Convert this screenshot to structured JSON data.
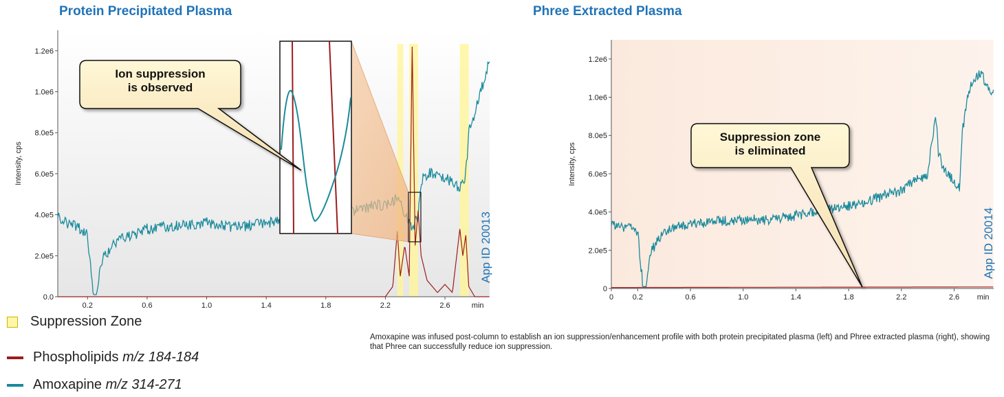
{
  "legend": {
    "suppression_zone": "Suppression Zone",
    "phospholipids_prefix": "Phospholipids ",
    "phospholipids_mz": "m/z 184-184",
    "amoxapine_prefix": "Amoxapine ",
    "amoxapine_mz": "m/z 314-271"
  },
  "caption": "Amoxapine was infused post-column to establish an ion suppression/enhancement profile with both protein precipitated plasma (left) and Phree extracted plasma (right), showing that Phree can successfully reduce ion suppression.",
  "colors": {
    "amoxapine": "#1a8a9c",
    "phospholipids": "#9b1c1c",
    "suppression_zone": "#fff59a",
    "title": "#1f73b7"
  },
  "chart_data": [
    {
      "type": "line",
      "title": "Protein Precipitated Plasma",
      "ylabel": "Intensity, cps",
      "xlabel": "min",
      "xlim": [
        0,
        2.9
      ],
      "ylim": [
        0,
        1300000
      ],
      "x_ticks": [
        "0.2",
        "0.6",
        "1.0",
        "1.4",
        "1.8",
        "2.2",
        "2.6",
        "min"
      ],
      "y_ticks": [
        "0.0",
        "2.0e5",
        "4.0e5",
        "6.0e5",
        "8.0e5",
        "1.0e6",
        "1.2e6"
      ],
      "annotation": "Ion suppression\nis observed",
      "watermark": "App ID 20013",
      "suppression_zones": [
        [
          2.28,
          2.32
        ],
        [
          2.36,
          2.42
        ],
        [
          2.7,
          2.76
        ]
      ],
      "series": [
        {
          "name": "Amoxapine m/z 314-271",
          "x": [
            0.0,
            0.05,
            0.1,
            0.15,
            0.2,
            0.22,
            0.24,
            0.26,
            0.28,
            0.3,
            0.35,
            0.4,
            0.5,
            0.6,
            0.8,
            1.0,
            1.2,
            1.4,
            1.6,
            1.8,
            2.0,
            2.1,
            2.2,
            2.28,
            2.32,
            2.35,
            2.38,
            2.42,
            2.45,
            2.5,
            2.6,
            2.65,
            2.7,
            2.74,
            2.76,
            2.8,
            2.84,
            2.88,
            2.9
          ],
          "y": [
            400000,
            360000,
            350000,
            330000,
            300000,
            150000,
            10000,
            10000,
            100000,
            180000,
            230000,
            270000,
            300000,
            330000,
            350000,
            360000,
            340000,
            360000,
            380000,
            400000,
            420000,
            440000,
            450000,
            480000,
            420000,
            380000,
            320000,
            400000,
            580000,
            600000,
            580000,
            560000,
            520000,
            600000,
            800000,
            900000,
            1000000,
            1100000,
            1180000
          ]
        },
        {
          "name": "Phospholipids m/z 184-184",
          "x": [
            0.0,
            1.8,
            2.2,
            2.25,
            2.28,
            2.3,
            2.33,
            2.36,
            2.38,
            2.4,
            2.42,
            2.44,
            2.48,
            2.55,
            2.6,
            2.65,
            2.7,
            2.72,
            2.74,
            2.76,
            2.8,
            2.9
          ],
          "y": [
            0,
            0,
            0,
            50000,
            320000,
            100000,
            250000,
            100000,
            1220000,
            250000,
            420000,
            200000,
            80000,
            20000,
            60000,
            20000,
            330000,
            200000,
            300000,
            50000,
            0,
            0
          ]
        }
      ]
    },
    {
      "type": "line",
      "title": "Phree Extracted Plasma",
      "ylabel": "Intensity, cps",
      "xlabel": "min",
      "xlim": [
        0,
        2.9
      ],
      "ylim": [
        0,
        1300000
      ],
      "x_ticks": [
        "0",
        "0.2",
        "0.6",
        "1.0",
        "1.4",
        "1.8",
        "2.2",
        "2.6",
        "min"
      ],
      "y_ticks": [
        "0",
        "2.0e5",
        "4.0e5",
        "6.0e5",
        "8.0e5",
        "1.0e6",
        "1.2e6"
      ],
      "annotation": "Suppression zone\nis eliminated",
      "watermark": "App ID 20014",
      "series": [
        {
          "name": "Amoxapine m/z 314-271",
          "x": [
            0.0,
            0.05,
            0.1,
            0.15,
            0.2,
            0.22,
            0.24,
            0.26,
            0.28,
            0.3,
            0.35,
            0.4,
            0.5,
            0.6,
            0.8,
            1.0,
            1.2,
            1.4,
            1.6,
            1.8,
            2.0,
            2.2,
            2.3,
            2.4,
            2.46,
            2.48,
            2.52,
            2.6,
            2.64,
            2.66,
            2.7,
            2.75,
            2.8,
            2.85,
            2.9
          ],
          "y": [
            340000,
            330000,
            320000,
            320000,
            300000,
            150000,
            10000,
            10000,
            110000,
            190000,
            250000,
            290000,
            320000,
            340000,
            350000,
            360000,
            360000,
            380000,
            410000,
            430000,
            470000,
            510000,
            560000,
            600000,
            920000,
            720000,
            620000,
            560000,
            530000,
            800000,
            1000000,
            1100000,
            1130000,
            1060000,
            1020000
          ]
        },
        {
          "name": "Phospholipids m/z 184-184",
          "x": [
            0.0,
            2.9
          ],
          "y": [
            5000,
            8000
          ]
        }
      ]
    }
  ]
}
